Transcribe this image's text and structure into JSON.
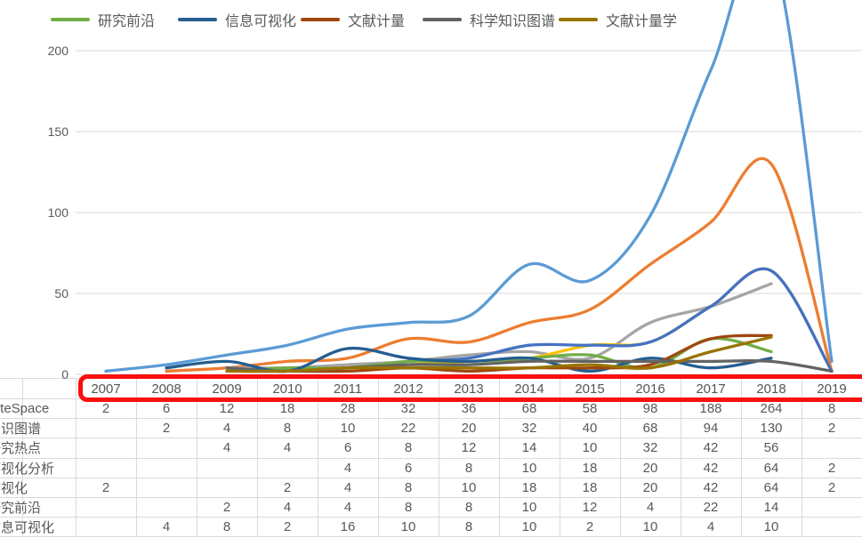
{
  "legend": {
    "items": [
      {
        "label": "研究前沿",
        "color": "#70AD47"
      },
      {
        "label": "信息可视化",
        "color": "#255E91"
      },
      {
        "label": "文献计量",
        "color": "#9E480E"
      },
      {
        "label": "科学知识图谱",
        "color": "#636363"
      },
      {
        "label": "文献计量学",
        "color": "#997300"
      }
    ]
  },
  "axis": {
    "y_ticks": [
      "0",
      "50",
      "100",
      "150",
      "200"
    ]
  },
  "chart_data": {
    "type": "line",
    "smooth": true,
    "grid": true,
    "legend_position": "top",
    "x": [
      2007,
      2008,
      2009,
      2010,
      2011,
      2012,
      2013,
      2014,
      2015,
      2016,
      2017,
      2018,
      2019
    ],
    "ylabel": "",
    "xlabel": "",
    "ylim_visible": [
      0,
      200
    ],
    "y_tick_values": [
      0,
      50,
      100,
      150,
      200
    ],
    "series": [
      {
        "name": "CiteSpace",
        "color": "#5B9BD5",
        "values": [
          2,
          6,
          12,
          18,
          28,
          32,
          36,
          68,
          58,
          98,
          188,
          264,
          8
        ]
      },
      {
        "name": "知识图谱",
        "color": "#ED7D31",
        "values": [
          null,
          2,
          4,
          8,
          10,
          22,
          20,
          32,
          40,
          68,
          94,
          130,
          2
        ]
      },
      {
        "name": "研究热点",
        "color": "#A5A5A5",
        "values": [
          null,
          null,
          4,
          4,
          6,
          8,
          12,
          14,
          10,
          32,
          42,
          56,
          null
        ]
      },
      {
        "name": "可视化分析",
        "color": "#FFC000",
        "values": [
          null,
          null,
          null,
          null,
          4,
          6,
          8,
          10,
          18,
          20,
          42,
          64,
          2
        ]
      },
      {
        "name": "可视化",
        "color": "#4472C4",
        "values": [
          2,
          null,
          null,
          2,
          4,
          8,
          10,
          18,
          18,
          20,
          42,
          64,
          2
        ]
      },
      {
        "name": "研究前沿",
        "color": "#70AD47",
        "values": [
          null,
          null,
          2,
          4,
          4,
          8,
          8,
          10,
          12,
          4,
          22,
          14,
          null
        ]
      },
      {
        "name": "信息可视化",
        "color": "#255E91",
        "values": [
          null,
          4,
          8,
          2,
          16,
          10,
          8,
          10,
          2,
          10,
          4,
          10,
          null
        ]
      },
      {
        "name": "文献计量",
        "color": "#9E480E",
        "estimated": true,
        "values": [
          null,
          null,
          2,
          2,
          2,
          4,
          2,
          4,
          4,
          6,
          22,
          24,
          null
        ]
      },
      {
        "name": "科学知识图谱",
        "color": "#636363",
        "estimated": true,
        "values": [
          null,
          null,
          4,
          2,
          4,
          6,
          6,
          8,
          8,
          8,
          8,
          8,
          2
        ]
      },
      {
        "name": "文献计量学",
        "color": "#997300",
        "estimated": true,
        "values": [
          null,
          null,
          2,
          2,
          4,
          4,
          4,
          4,
          6,
          4,
          14,
          23,
          null
        ]
      }
    ]
  },
  "table": {
    "header_years": [
      "2007",
      "2008",
      "2009",
      "2010",
      "2011",
      "2012",
      "2013",
      "2014",
      "2015",
      "2016",
      "2017",
      "2018",
      "2019"
    ],
    "rows": [
      {
        "label": "CiteSpace",
        "values": [
          "2",
          "6",
          "12",
          "18",
          "28",
          "32",
          "36",
          "68",
          "58",
          "98",
          "188",
          "264",
          "8"
        ]
      },
      {
        "label": "知识图谱",
        "values": [
          "",
          "2",
          "4",
          "8",
          "10",
          "22",
          "20",
          "32",
          "40",
          "68",
          "94",
          "130",
          "2"
        ]
      },
      {
        "label": "研究热点",
        "values": [
          "",
          "",
          "4",
          "4",
          "6",
          "8",
          "12",
          "14",
          "10",
          "32",
          "42",
          "56",
          ""
        ]
      },
      {
        "label": "可视化分析",
        "values": [
          "",
          "",
          "",
          "",
          "4",
          "6",
          "8",
          "10",
          "18",
          "20",
          "42",
          "64",
          "2"
        ]
      },
      {
        "label": "可视化",
        "values": [
          "2",
          "",
          "",
          "2",
          "4",
          "8",
          "10",
          "18",
          "18",
          "20",
          "42",
          "64",
          "2"
        ]
      },
      {
        "label": "研究前沿",
        "values": [
          "",
          "",
          "2",
          "4",
          "4",
          "8",
          "8",
          "10",
          "12",
          "4",
          "22",
          "14",
          ""
        ]
      },
      {
        "label": "信息可视化",
        "values": [
          "",
          "4",
          "8",
          "2",
          "16",
          "10",
          "8",
          "10",
          "2",
          "10",
          "4",
          "10",
          ""
        ]
      }
    ]
  },
  "annotation": {
    "shape": "rounded-rectangle",
    "color": "#FB0E0E",
    "highlights": "year header row 2007-2019"
  }
}
